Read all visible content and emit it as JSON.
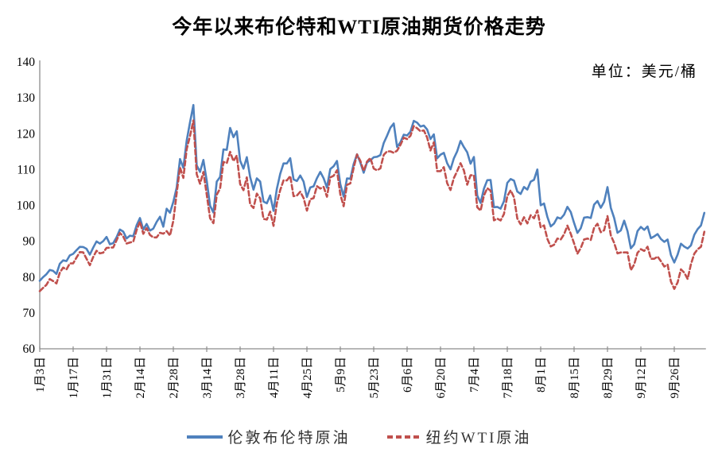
{
  "chart_data": {
    "type": "line",
    "title": "今年以来布伦特和WTI原油期货价格走势",
    "unit_label": "单位：美元/桶",
    "ylabel": "",
    "xlabel": "",
    "ylim": [
      60,
      140
    ],
    "ytick_labels": [
      "140",
      "130",
      "120",
      "110",
      "100",
      "90",
      "80",
      "70",
      "60"
    ],
    "x_tick_labels": [
      "1月3日",
      "1月17日",
      "1月31日",
      "2月14日",
      "2月28日",
      "3月14日",
      "3月28日",
      "4月11日",
      "4月25日",
      "5月9日",
      "5月23日",
      "6月6日",
      "6月20日",
      "7月4日",
      "7月18日",
      "8月1日",
      "8月15日",
      "8月29日",
      "9月12日",
      "9月26日"
    ],
    "x_tick_interval": 10,
    "grid": false,
    "legend_position": "bottom-center",
    "axis_color": "#8c8c8c",
    "series": [
      {
        "name": "伦敦布伦特原油",
        "color": "#4F81BD",
        "style": "solid",
        "values": [
          78.98,
          80.0,
          80.8,
          81.99,
          81.75,
          80.87,
          83.72,
          84.67,
          84.47,
          86.06,
          86.48,
          87.51,
          88.44,
          88.38,
          87.89,
          86.27,
          88.2,
          89.96,
          89.34,
          90.03,
          91.21,
          89.16,
          89.47,
          91.11,
          93.27,
          92.69,
          90.78,
          91.55,
          91.41,
          94.44,
          96.48,
          93.28,
          94.81,
          92.97,
          93.54,
          95.39,
          96.84,
          94.05,
          99.08,
          97.93,
          100.99,
          104.97,
          112.93,
          110.46,
          118.11,
          123.21,
          127.98,
          111.14,
          109.33,
          112.67,
          106.9,
          99.91,
          98.02,
          106.64,
          107.93,
          115.62,
          115.48,
          121.6,
          119.03,
          120.65,
          112.48,
          110.23,
          113.45,
          107.91,
          104.39,
          107.53,
          106.64,
          101.07,
          100.58,
          102.78,
          98.48,
          104.64,
          108.78,
          111.7,
          111.7,
          113.16,
          107.25,
          106.8,
          108.33,
          106.65,
          102.32,
          104.99,
          105.32,
          107.59,
          109.34,
          107.58,
          104.97,
          110.14,
          110.9,
          112.39,
          105.94,
          102.46,
          107.51,
          107.45,
          111.55,
          114.24,
          111.93,
          109.11,
          112.04,
          112.55,
          113.42,
          113.56,
          114.03,
          117.4,
          119.43,
          121.67,
          122.84,
          116.29,
          117.61,
          119.72,
          119.51,
          120.57,
          123.58,
          123.07,
          122.01,
          122.27,
          121.17,
          118.51,
          119.81,
          113.12,
          114.13,
          114.65,
          111.74,
          110.05,
          113.12,
          115.09,
          117.98,
          116.26,
          114.81,
          111.63,
          113.5,
          102.77,
          100.69,
          104.65,
          107.02,
          107.1,
          99.49,
          99.57,
          99.1,
          101.16,
          106.27,
          107.35,
          106.92,
          103.86,
          103.2,
          105.15,
          104.4,
          106.62,
          107.14,
          110.01,
          100.03,
          100.54,
          96.78,
          94.12,
          94.92,
          96.65,
          96.31,
          97.4,
          99.6,
          98.15,
          95.1,
          92.34,
          93.65,
          96.59,
          96.72,
          96.48,
          100.22,
          101.22,
          99.34,
          100.99,
          105.09,
          99.31,
          96.49,
          92.36,
          93.02,
          95.74,
          92.83,
          88.0,
          89.15,
          92.84,
          94.0,
          93.17,
          94.1,
          90.84,
          91.35,
          92.0,
          90.62,
          89.83,
          90.46,
          86.15,
          84.06,
          86.27,
          89.32,
          88.49,
          87.96,
          88.86,
          91.8,
          93.37,
          94.42,
          97.92
        ]
      },
      {
        "name": "纽约WTI原油",
        "color": "#C0504D",
        "style": "dashed",
        "values": [
          76.08,
          76.99,
          77.85,
          79.46,
          78.9,
          78.23,
          81.22,
          82.64,
          82.12,
          83.82,
          83.82,
          85.43,
          86.96,
          86.9,
          85.14,
          83.31,
          85.6,
          87.35,
          86.61,
          86.82,
          88.15,
          88.2,
          88.26,
          90.27,
          92.31,
          91.32,
          89.36,
          89.66,
          89.88,
          93.1,
          95.46,
          92.07,
          93.66,
          91.76,
          91.07,
          91.07,
          92.35,
          92.1,
          92.81,
          91.59,
          95.72,
          103.41,
          110.6,
          107.67,
          115.68,
          119.4,
          123.7,
          108.7,
          106.02,
          109.33,
          103.01,
          96.44,
          95.04,
          102.98,
          104.7,
          112.12,
          111.76,
          114.93,
          112.34,
          113.9,
          105.96,
          104.24,
          107.82,
          100.28,
          99.27,
          103.28,
          101.96,
          96.23,
          96.03,
          98.26,
          94.29,
          100.6,
          104.25,
          106.95,
          106.95,
          108.21,
          102.56,
          102.75,
          103.79,
          102.07,
          98.54,
          101.7,
          102.02,
          105.36,
          104.69,
          105.17,
          102.41,
          107.81,
          108.26,
          109.77,
          103.09,
          99.76,
          105.71,
          106.13,
          110.49,
          114.2,
          112.4,
          109.59,
          112.21,
          113.23,
          110.29,
          109.77,
          110.33,
          114.09,
          115.07,
          115.07,
          114.67,
          115.26,
          116.87,
          118.87,
          118.5,
          119.41,
          122.11,
          121.51,
          120.67,
          120.93,
          118.93,
          115.31,
          117.59,
          109.56,
          109.56,
          110.65,
          106.19,
          104.27,
          107.62,
          109.57,
          111.76,
          109.78,
          105.76,
          108.43,
          108.43,
          99.5,
          98.53,
          102.73,
          104.79,
          104.09,
          95.84,
          96.3,
          95.78,
          97.59,
          102.6,
          104.22,
          102.26,
          96.35,
          94.7,
          96.7,
          94.98,
          97.26,
          96.42,
          98.62,
          93.89,
          94.42,
          90.66,
          88.54,
          89.01,
          90.76,
          90.5,
          91.93,
          94.34,
          92.09,
          89.41,
          86.53,
          88.11,
          90.5,
          90.77,
          90.36,
          93.74,
          94.89,
          92.52,
          93.06,
          97.01,
          91.64,
          89.55,
          86.61,
          86.87,
          86.87,
          86.88,
          81.94,
          83.54,
          86.79,
          87.78,
          87.31,
          88.48,
          85.1,
          85.11,
          85.73,
          84.45,
          82.94,
          83.49,
          78.74,
          76.71,
          78.5,
          82.15,
          81.23,
          79.49,
          83.63,
          86.52,
          87.76,
          88.45,
          92.64
        ]
      }
    ]
  }
}
